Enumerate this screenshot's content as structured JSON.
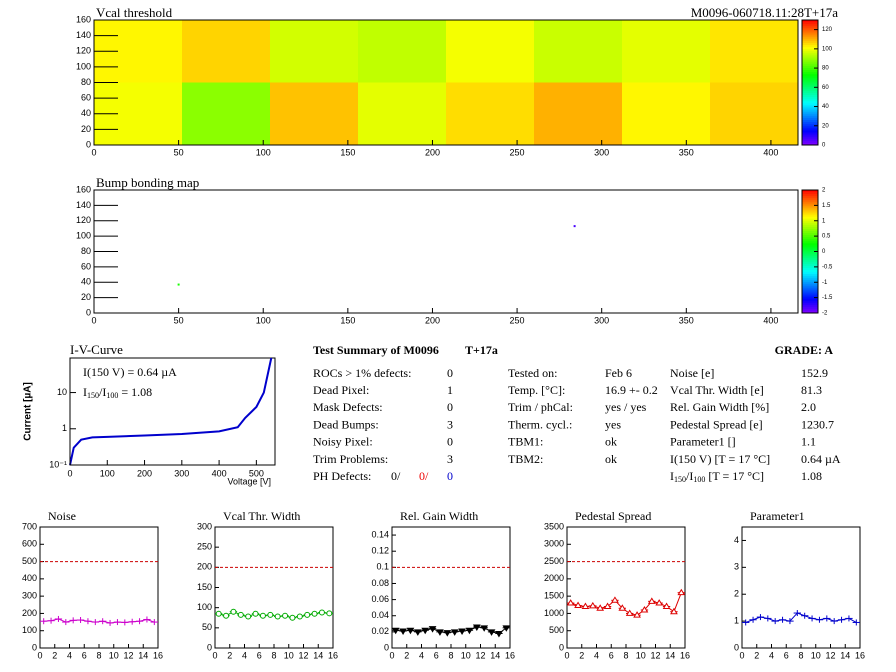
{
  "chart_data": [
    {
      "type": "heatmap",
      "title": "Vcal threshold",
      "subtitle": "M0096-060718.11:28T+17a",
      "xlim": [
        0,
        416
      ],
      "ylim": [
        0,
        160
      ],
      "xticks": [
        0,
        50,
        100,
        150,
        200,
        250,
        300,
        350,
        400
      ],
      "yticks": [
        0,
        20,
        40,
        60,
        80,
        100,
        120,
        140,
        160
      ],
      "zlim": [
        0,
        130
      ],
      "zticks": [
        0,
        20,
        40,
        60,
        80,
        100,
        120
      ],
      "x_edges": [
        0,
        52,
        104,
        156,
        208,
        260,
        312,
        364,
        416
      ],
      "y_edges": [
        0,
        80,
        160
      ],
      "z": [
        [
          100,
          88,
          108,
          98,
          105,
          110,
          102,
          106
        ],
        [
          102,
          106,
          96,
          94,
          100,
          95,
          98,
          104
        ]
      ]
    },
    {
      "type": "scatter-map",
      "title": "Bump bonding map",
      "xlim": [
        0,
        416
      ],
      "ylim": [
        0,
        160
      ],
      "xticks": [
        0,
        50,
        100,
        150,
        200,
        250,
        300,
        350,
        400
      ],
      "yticks": [
        0,
        20,
        40,
        60,
        80,
        100,
        120,
        140,
        160
      ],
      "zlim": [
        -2,
        2
      ],
      "zticks": [
        -2,
        -1.5,
        -1,
        -0.5,
        0,
        0.5,
        1,
        1.5,
        2
      ],
      "x": [
        50,
        284
      ],
      "y": [
        37,
        113
      ],
      "z": [
        0.3,
        -1.8
      ]
    },
    {
      "type": "line",
      "title": "I-V-Curve",
      "log_y": true,
      "color": "#0000cc",
      "xlabel": "Voltage [V]",
      "ylabel": "Current [µA]",
      "annotation": "I(150 V) = 0.64 µA",
      "ratio": [
        "I",
        "150",
        "/I",
        "100",
        " =  1.08"
      ],
      "xlim": [
        0,
        550
      ],
      "ylim": [
        0.1,
        90
      ],
      "xticks": [
        0,
        100,
        200,
        300,
        400,
        500
      ],
      "yticks": [
        {
          "value": 0.1,
          "label": "10⁻¹"
        },
        1,
        10
      ],
      "x": [
        0,
        10,
        30,
        60,
        100,
        200,
        300,
        400,
        450,
        470,
        500,
        520,
        540
      ],
      "values": [
        0.1,
        0.3,
        0.5,
        0.58,
        0.6,
        0.65,
        0.72,
        0.85,
        1.1,
        2,
        4,
        10,
        90
      ]
    },
    {
      "type": "line",
      "title": "Noise",
      "color": "#cc00cc",
      "marker": "cross",
      "reference": 500,
      "xlim": [
        0,
        16
      ],
      "ylim": [
        0,
        700
      ],
      "xticks": [
        0,
        2,
        4,
        6,
        8,
        10,
        12,
        14,
        16
      ],
      "yticks": [
        0,
        100,
        200,
        300,
        400,
        500,
        600,
        700
      ],
      "x": [
        0.5,
        1.5,
        2.5,
        3.5,
        4.5,
        5.5,
        6.5,
        7.5,
        8.5,
        9.5,
        10.5,
        11.5,
        12.5,
        13.5,
        14.5,
        15.5
      ],
      "values": [
        155,
        158,
        168,
        150,
        160,
        162,
        155,
        150,
        155,
        145,
        150,
        148,
        152,
        155,
        165,
        150
      ]
    },
    {
      "type": "line",
      "title": "Vcal Thr. Width",
      "color": "#00aa00",
      "marker": "circle",
      "reference": 200,
      "xlim": [
        0,
        16
      ],
      "ylim": [
        0,
        300
      ],
      "xticks": [
        0,
        2,
        4,
        6,
        8,
        10,
        12,
        14,
        16
      ],
      "yticks": [
        0,
        50,
        100,
        150,
        200,
        250,
        300
      ],
      "x": [
        0.5,
        1.5,
        2.5,
        3.5,
        4.5,
        5.5,
        6.5,
        7.5,
        8.5,
        9.5,
        10.5,
        11.5,
        12.5,
        13.5,
        14.5,
        15.5
      ],
      "values": [
        85,
        80,
        90,
        82,
        78,
        85,
        80,
        82,
        78,
        80,
        75,
        78,
        82,
        85,
        88,
        86
      ]
    },
    {
      "type": "line",
      "title": "Rel. Gain Width",
      "color": "#000000",
      "marker": "triangle-down",
      "reference": 0.1,
      "xlim": [
        0,
        16
      ],
      "ylim": [
        0,
        0.15
      ],
      "xticks": [
        0,
        2,
        4,
        6,
        8,
        10,
        12,
        14,
        16
      ],
      "yticks": [
        0,
        0.02,
        0.04,
        0.06,
        0.08,
        0.1,
        0.12,
        0.14
      ],
      "x": [
        0.5,
        1.5,
        2.5,
        3.5,
        4.5,
        5.5,
        6.5,
        7.5,
        8.5,
        9.5,
        10.5,
        11.5,
        12.5,
        13.5,
        14.5,
        15.5
      ],
      "values": [
        0.022,
        0.021,
        0.022,
        0.02,
        0.022,
        0.024,
        0.02,
        0.019,
        0.02,
        0.021,
        0.022,
        0.026,
        0.025,
        0.02,
        0.018,
        0.025
      ]
    },
    {
      "type": "line",
      "title": "Pedestal Spread",
      "color": "#dd0000",
      "marker": "triangle-up",
      "reference": 2500,
      "xlim": [
        0,
        16
      ],
      "ylim": [
        0,
        3500
      ],
      "xticks": [
        0,
        2,
        4,
        6,
        8,
        10,
        12,
        14,
        16
      ],
      "yticks": [
        0,
        500,
        1000,
        1500,
        2000,
        2500,
        3000,
        3500
      ],
      "x": [
        0.5,
        1.5,
        2.5,
        3.5,
        4.5,
        5.5,
        6.5,
        7.5,
        8.5,
        9.5,
        10.5,
        11.5,
        12.5,
        13.5,
        14.5,
        15.5
      ],
      "values": [
        1300,
        1230,
        1200,
        1220,
        1150,
        1200,
        1380,
        1150,
        1000,
        950,
        1100,
        1350,
        1300,
        1200,
        1050,
        1600
      ]
    },
    {
      "type": "line",
      "title": "Parameter1",
      "color": "#0000cc",
      "marker": "cross",
      "xlim": [
        0,
        16
      ],
      "ylim": [
        0,
        4.5
      ],
      "xticks": [
        0,
        2,
        4,
        6,
        8,
        10,
        12,
        14,
        16
      ],
      "yticks": [
        0,
        1,
        2,
        3,
        4
      ],
      "x": [
        0.5,
        1.5,
        2.5,
        3.5,
        4.5,
        5.5,
        6.5,
        7.5,
        8.5,
        9.5,
        10.5,
        11.5,
        12.5,
        13.5,
        14.5,
        15.5
      ],
      "values": [
        0.95,
        1.05,
        1.15,
        1.1,
        1.0,
        1.05,
        1.0,
        1.3,
        1.2,
        1.1,
        1.05,
        1.1,
        1.0,
        1.05,
        1.1,
        0.95
      ]
    }
  ],
  "summary": {
    "title": "Test Summary of M0096",
    "tag": "T+17a",
    "grade": "GRADE:  A",
    "defects": [
      [
        "ROCs > 1% defects:",
        "0"
      ],
      [
        "Dead Pixel:",
        "1"
      ],
      [
        "Mask Defects:",
        "0"
      ],
      [
        "Dead Bumps:",
        "3"
      ],
      [
        "Noisy Pixel:",
        "0"
      ],
      [
        "Trim Problems:",
        "3"
      ]
    ],
    "ph": {
      "label": "PH Defects:",
      "values": [
        "0/",
        "0/",
        "0"
      ],
      "colors": [
        "#000000",
        "#ee0000",
        "#0000cc"
      ]
    },
    "info": [
      [
        "Tested on:",
        "Feb 6"
      ],
      [
        "Temp. [°C]:",
        "16.9 +- 0.2"
      ],
      [
        "Trim / phCal:",
        "yes / yes"
      ],
      [
        "Therm. cycl.:",
        "yes"
      ],
      [
        "TBM1:",
        "ok"
      ],
      [
        "TBM2:",
        "ok"
      ]
    ],
    "results": [
      [
        "Noise [e]",
        "152.9"
      ],
      [
        "Vcal Thr. Width [e]",
        "81.3"
      ],
      [
        "Rel. Gain Width [%]",
        "2.0"
      ],
      [
        "Pedestal Spread [e]",
        "1230.7"
      ],
      [
        "Parameter1 []",
        "1.1"
      ],
      [
        "I(150 V) [T = 17 °C]",
        "0.64 µA"
      ],
      [
        [
          "I",
          "150",
          "/I",
          "100",
          "  [T = 17 °C]"
        ],
        "1.08"
      ]
    ]
  }
}
